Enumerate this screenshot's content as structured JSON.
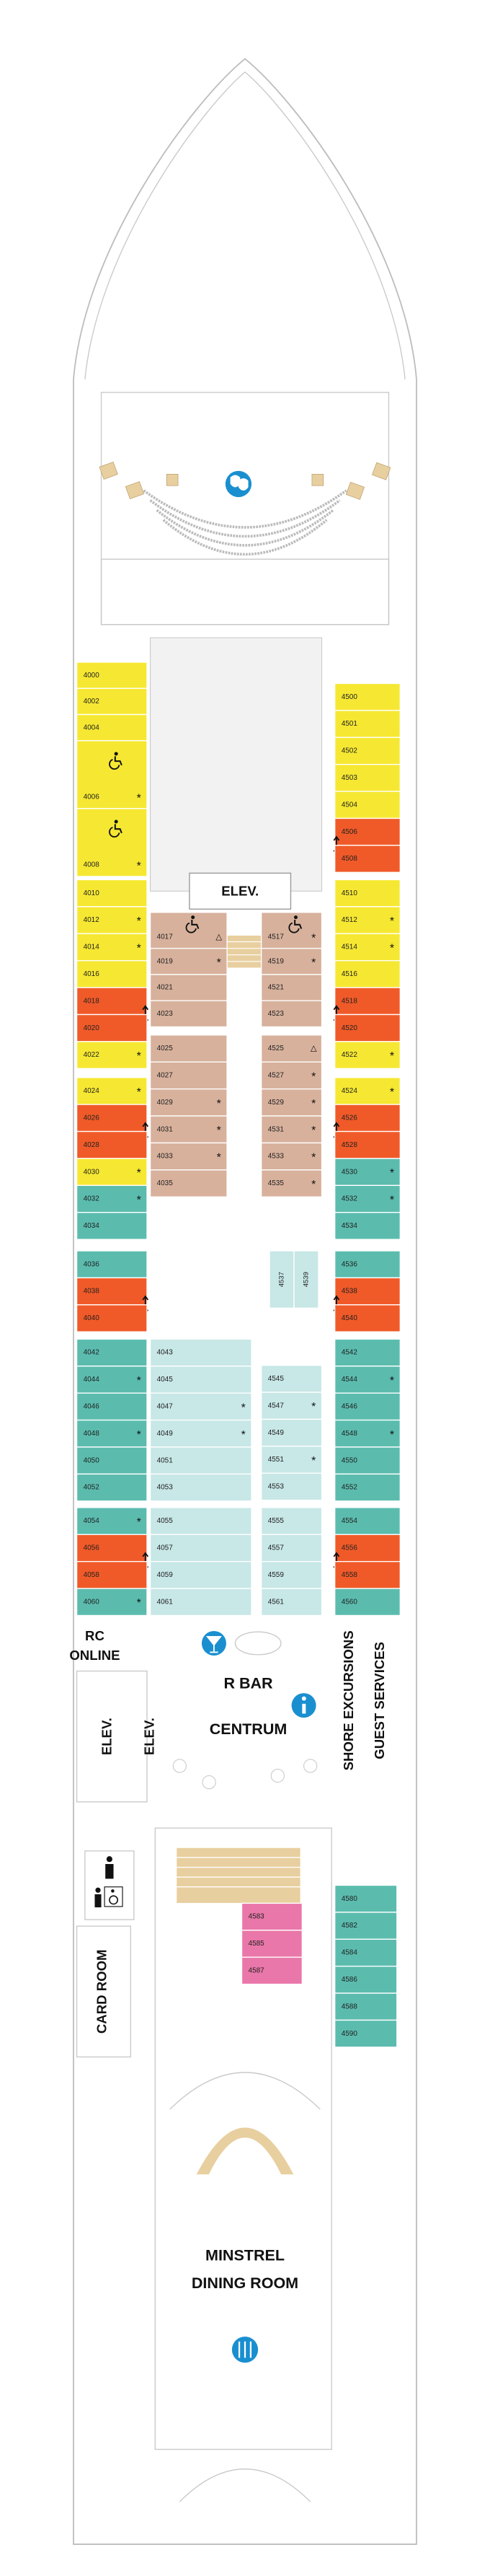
{
  "labels": {
    "elevator_top": "ELEV.",
    "rc_online": [
      "RC",
      "ONLINE"
    ],
    "r_bar": "R BAR",
    "centrum": "CENTRUM",
    "shore_excursions": "SHORE EXCURSIONS",
    "guest_services": "GUEST SERVICES",
    "elevator_left": "ELEV.",
    "elevator_right": "ELEV.",
    "card_room": "CARD ROOM",
    "dining_room": [
      "MINSTREL",
      "DINING ROOM"
    ]
  },
  "cabins": {
    "port_outer": [
      {
        "number": "4000",
        "color": "#f6e832"
      },
      {
        "number": "4002",
        "color": "#f6e832"
      },
      {
        "number": "4004",
        "color": "#f6e832"
      },
      {
        "number": "4006",
        "color": "#f6e832",
        "symbol": "*",
        "accessible": true
      },
      {
        "number": "4008",
        "color": "#f6e832",
        "symbol": "*",
        "accessible": true
      },
      {
        "number": "4010",
        "color": "#f6e832"
      },
      {
        "number": "4012",
        "color": "#f6e832",
        "symbol": "*"
      },
      {
        "number": "4014",
        "color": "#f6e832",
        "symbol": "*"
      },
      {
        "number": "4016",
        "color": "#f6e832"
      },
      {
        "number": "4018",
        "color": "#f05a28",
        "connecting": true
      },
      {
        "number": "4020",
        "color": "#f05a28"
      },
      {
        "number": "4022",
        "color": "#f6e832",
        "symbol": "*"
      },
      {
        "number": "4024",
        "color": "#f6e832",
        "symbol": "*"
      },
      {
        "number": "4026",
        "color": "#f05a28",
        "connecting": true
      },
      {
        "number": "4028",
        "color": "#f05a28"
      },
      {
        "number": "4030",
        "color": "#f6e832",
        "symbol": "*"
      },
      {
        "number": "4032",
        "color": "#5bbcae",
        "symbol": "*"
      },
      {
        "number": "4034",
        "color": "#5bbcae"
      },
      {
        "number": "4036",
        "color": "#5bbcae"
      },
      {
        "number": "4038",
        "color": "#f05a28",
        "connecting": true
      },
      {
        "number": "4040",
        "color": "#f05a28"
      },
      {
        "number": "4042",
        "color": "#5bbcae"
      },
      {
        "number": "4044",
        "color": "#5bbcae",
        "symbol": "*"
      },
      {
        "number": "4046",
        "color": "#5bbcae"
      },
      {
        "number": "4048",
        "color": "#5bbcae",
        "symbol": "*"
      },
      {
        "number": "4050",
        "color": "#5bbcae"
      },
      {
        "number": "4052",
        "color": "#5bbcae"
      },
      {
        "number": "4054",
        "color": "#5bbcae",
        "symbol": "*"
      },
      {
        "number": "4056",
        "color": "#f05a28",
        "connecting": true
      },
      {
        "number": "4058",
        "color": "#f05a28"
      },
      {
        "number": "4060",
        "color": "#5bbcae",
        "symbol": "*"
      }
    ],
    "starboard_outer": [
      {
        "number": "4500",
        "color": "#f6e832"
      },
      {
        "number": "4501",
        "color": "#f6e832"
      },
      {
        "number": "4502",
        "color": "#f6e832"
      },
      {
        "number": "4503",
        "color": "#f6e832"
      },
      {
        "number": "4504",
        "color": "#f6e832"
      },
      {
        "number": "4506",
        "color": "#f05a28",
        "connecting": true
      },
      {
        "number": "4508",
        "color": "#f05a28"
      },
      {
        "number": "4510",
        "color": "#f6e832"
      },
      {
        "number": "4512",
        "color": "#f6e832",
        "symbol": "*"
      },
      {
        "number": "4514",
        "color": "#f6e832",
        "symbol": "*"
      },
      {
        "number": "4516",
        "color": "#f6e832"
      },
      {
        "number": "4518",
        "color": "#f05a28",
        "connecting": true
      },
      {
        "number": "4520",
        "color": "#f05a28"
      },
      {
        "number": "4522",
        "color": "#f6e832",
        "symbol": "*"
      },
      {
        "number": "4524",
        "color": "#f6e832",
        "symbol": "*"
      },
      {
        "number": "4526",
        "color": "#f05a28",
        "connecting": true
      },
      {
        "number": "4528",
        "color": "#f05a28"
      },
      {
        "number": "4530",
        "color": "#5bbcae",
        "symbol": "*"
      },
      {
        "number": "4532",
        "color": "#5bbcae",
        "symbol": "*"
      },
      {
        "number": "4534",
        "color": "#5bbcae"
      },
      {
        "number": "4536",
        "color": "#5bbcae"
      },
      {
        "number": "4538",
        "color": "#f05a28",
        "connecting": true
      },
      {
        "number": "4540",
        "color": "#f05a28"
      },
      {
        "number": "4542",
        "color": "#5bbcae"
      },
      {
        "number": "4544",
        "color": "#5bbcae",
        "symbol": "*"
      },
      {
        "number": "4546",
        "color": "#5bbcae"
      },
      {
        "number": "4548",
        "color": "#5bbcae",
        "symbol": "*"
      },
      {
        "number": "4550",
        "color": "#5bbcae"
      },
      {
        "number": "4552",
        "color": "#5bbcae"
      },
      {
        "number": "4554",
        "color": "#5bbcae"
      },
      {
        "number": "4556",
        "color": "#f05a28",
        "connecting": true
      },
      {
        "number": "4558",
        "color": "#f05a28"
      },
      {
        "number": "4560",
        "color": "#5bbcae"
      }
    ],
    "port_inner": [
      {
        "number": "4017",
        "color": "#d7b19c",
        "symbol": "△",
        "accessible": true
      },
      {
        "number": "4019",
        "color": "#d7b19c",
        "symbol": "*"
      },
      {
        "number": "4021",
        "color": "#d7b19c"
      },
      {
        "number": "4023",
        "color": "#d7b19c"
      },
      {
        "number": "4025",
        "color": "#d7b19c"
      },
      {
        "number": "4027",
        "color": "#d7b19c"
      },
      {
        "number": "4029",
        "color": "#d7b19c",
        "symbol": "*"
      },
      {
        "number": "4031",
        "color": "#d7b19c",
        "symbol": "*"
      },
      {
        "number": "4033",
        "color": "#d7b19c",
        "symbol": "*"
      },
      {
        "number": "4035",
        "color": "#d7b19c"
      }
    ],
    "starboard_inner": [
      {
        "number": "4517",
        "color": "#d7b19c",
        "symbol": "*",
        "accessible": true
      },
      {
        "number": "4519",
        "color": "#d7b19c",
        "symbol": "*"
      },
      {
        "number": "4521",
        "color": "#d7b19c"
      },
      {
        "number": "4523",
        "color": "#d7b19c"
      },
      {
        "number": "4525",
        "color": "#d7b19c",
        "symbol": "△"
      },
      {
        "number": "4527",
        "color": "#d7b19c",
        "symbol": "*"
      },
      {
        "number": "4529",
        "color": "#d7b19c",
        "symbol": "*"
      },
      {
        "number": "4531",
        "color": "#d7b19c",
        "symbol": "*"
      },
      {
        "number": "4533",
        "color": "#d7b19c",
        "symbol": "*"
      },
      {
        "number": "4535",
        "color": "#d7b19c",
        "symbol": "*"
      }
    ],
    "port_aft_inner": [
      {
        "number": "4043",
        "color": "#c8e7e7"
      },
      {
        "number": "4045",
        "color": "#c8e7e7"
      },
      {
        "number": "4047",
        "color": "#c8e7e7",
        "symbol": "*"
      },
      {
        "number": "4049",
        "color": "#c8e7e7",
        "symbol": "*"
      },
      {
        "number": "4051",
        "color": "#c8e7e7"
      },
      {
        "number": "4053",
        "color": "#c8e7e7"
      },
      {
        "number": "4055",
        "color": "#c8e7e7"
      },
      {
        "number": "4057",
        "color": "#c8e7e7"
      },
      {
        "number": "4059",
        "color": "#c8e7e7"
      },
      {
        "number": "4061",
        "color": "#c8e7e7"
      }
    ],
    "center_pair": [
      {
        "number": "4537",
        "color": "#c8e7e7"
      },
      {
        "number": "4539",
        "color": "#c8e7e7"
      }
    ],
    "starboard_aft_inner": [
      {
        "number": "4545",
        "color": "#c8e7e7"
      },
      {
        "number": "4547",
        "color": "#c8e7e7",
        "symbol": "*"
      },
      {
        "number": "4549",
        "color": "#c8e7e7"
      },
      {
        "number": "4551",
        "color": "#c8e7e7",
        "symbol": "*"
      },
      {
        "number": "4553",
        "color": "#c8e7e7"
      },
      {
        "number": "4555",
        "color": "#c8e7e7"
      },
      {
        "number": "4557",
        "color": "#c8e7e7"
      },
      {
        "number": "4559",
        "color": "#c8e7e7"
      },
      {
        "number": "4561",
        "color": "#c8e7e7"
      }
    ],
    "aft_starboard": [
      {
        "number": "4580",
        "color": "#5bbcae"
      },
      {
        "number": "4582",
        "color": "#5bbcae"
      },
      {
        "number": "4584",
        "color": "#5bbcae"
      },
      {
        "number": "4586",
        "color": "#5bbcae"
      },
      {
        "number": "4588",
        "color": "#5bbcae"
      },
      {
        "number": "4590",
        "color": "#5bbcae"
      }
    ],
    "aft_center": [
      {
        "number": "4583",
        "color": "#ea77a9"
      },
      {
        "number": "4585",
        "color": "#ea77a9"
      },
      {
        "number": "4587",
        "color": "#ea77a9"
      }
    ]
  }
}
